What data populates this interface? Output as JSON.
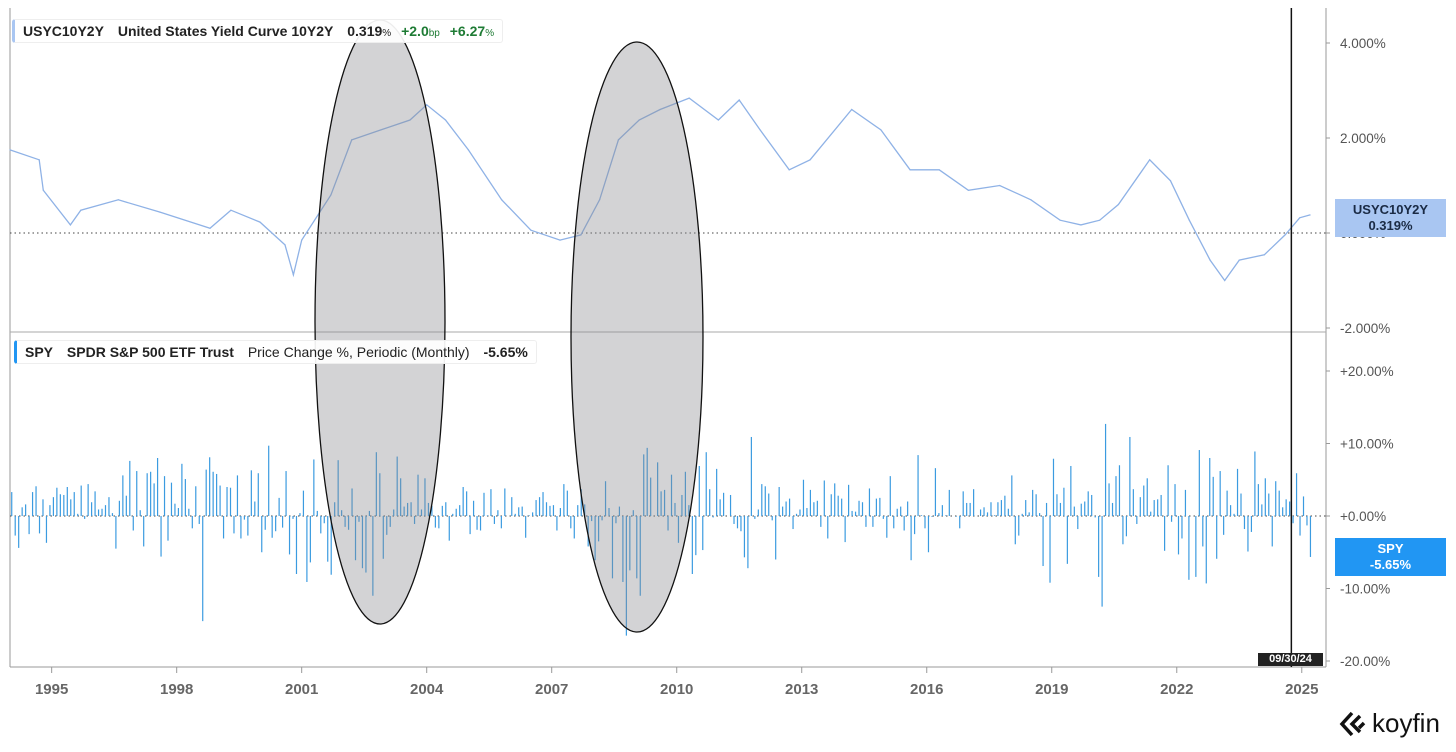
{
  "colors": {
    "yield_line": "#8fb2e6",
    "spy_bars": "#3b9be0",
    "yield_badge": "#a9c6f2",
    "spy_badge": "#2196f3",
    "positive": "#1e7b34"
  },
  "upper_legend": {
    "symbol": "USYC10Y2Y",
    "name": "United States Yield Curve 10Y2Y",
    "value": "0.319",
    "value_unit": "%",
    "change": "+2.0",
    "change_unit": "bp",
    "pct_change": "+6.27",
    "pct_unit": "%"
  },
  "lower_legend": {
    "symbol": "SPY",
    "name": "SPDR S&P 500 ETF Trust",
    "metric": "Price Change %, Periodic (Monthly)",
    "value": "-5.65%"
  },
  "yield_badge": {
    "symbol": "USYC10Y2Y",
    "value": "0.319%"
  },
  "spy_badge": {
    "symbol": "SPY",
    "value": "-5.65%"
  },
  "crosshair_date": "09/30/24",
  "logo": {
    "text": "koyfin"
  },
  "chart_data": [
    {
      "type": "line",
      "title": "United States Yield Curve 10Y2Y",
      "ylabel": "%",
      "xlim": [
        1994.0,
        2025.6
      ],
      "ylim": [
        -2.1,
        4.7
      ],
      "y_ticks": [
        4,
        2,
        0,
        -2
      ],
      "y_tick_labels": [
        "4.000%",
        "2.000%",
        "0.000%",
        "-2.000%"
      ],
      "reference_line": 0,
      "x": [
        1994.0,
        1994.7,
        1994.8,
        1995.45,
        1995.7,
        1996.6,
        1997.6,
        1998.8,
        1999.3,
        2000.0,
        2000.6,
        2000.8,
        2001.0,
        2001.7,
        2002.2,
        2002.9,
        2003.6,
        2004.0,
        2004.45,
        2005.0,
        2005.8,
        2006.5,
        2007.2,
        2007.7,
        2008.15,
        2008.6,
        2009.1,
        2009.6,
        2010.3,
        2011.0,
        2011.5,
        2012.0,
        2012.7,
        2013.2,
        2014.2,
        2014.9,
        2015.6,
        2016.3,
        2017.0,
        2017.75,
        2018.5,
        2019.2,
        2019.7,
        2020.15,
        2020.6,
        2021.35,
        2021.85,
        2022.3,
        2022.8,
        2023.15,
        2023.5,
        2024.1,
        2024.6,
        2024.95,
        2025.2
      ],
      "y": [
        1.75,
        1.54,
        0.9,
        0.17,
        0.48,
        0.7,
        0.44,
        0.1,
        0.48,
        0.23,
        -0.25,
        -0.88,
        -0.15,
        0.8,
        1.96,
        2.17,
        2.38,
        2.7,
        2.38,
        1.75,
        0.7,
        0.06,
        -0.15,
        -0.04,
        0.7,
        1.96,
        2.38,
        2.6,
        2.84,
        2.38,
        2.8,
        2.17,
        1.33,
        1.54,
        2.6,
        2.17,
        1.33,
        1.33,
        0.9,
        1.0,
        0.7,
        0.27,
        0.17,
        0.27,
        0.6,
        1.54,
        1.1,
        0.27,
        -0.57,
        -1.0,
        -0.57,
        -0.46,
        -0.04,
        0.32,
        0.38
      ]
    },
    {
      "type": "bar",
      "title": "SPY Price Change %, Periodic (Monthly)",
      "start": "1994-01",
      "ylim": [
        -21,
        21
      ],
      "y_ticks": [
        20,
        10,
        0,
        -10,
        -20
      ],
      "y_tick_labels": [
        "+20.00%",
        "+10.00%",
        "+0.00%",
        "-10.00%",
        "-20.00%"
      ],
      "values": [
        3.3,
        -2.7,
        -4.4,
        1.2,
        1.6,
        -2.5,
        3.3,
        4.1,
        -2.4,
        2.3,
        -3.7,
        1.5,
        2.6,
        3.9,
        3.0,
        2.9,
        4.0,
        2.3,
        3.3,
        0.3,
        4.2,
        -0.4,
        4.4,
        1.9,
        3.4,
        0.9,
        1.0,
        1.5,
        2.6,
        0.4,
        -4.5,
        2.1,
        5.6,
        2.8,
        7.6,
        -2.0,
        6.2,
        0.8,
        -4.2,
        5.9,
        6.1,
        4.5,
        8.0,
        -5.6,
        5.5,
        -3.4,
        4.6,
        1.7,
        1.1,
        7.2,
        5.1,
        1.0,
        -1.7,
        4.1,
        -1.1,
        -14.5,
        6.4,
        8.1,
        6.1,
        5.8,
        4.2,
        -3.1,
        4.0,
        3.9,
        -2.4,
        5.6,
        -3.1,
        -0.5,
        -2.7,
        6.3,
        2.0,
        5.9,
        -5.0,
        -1.9,
        9.7,
        -3.0,
        -2.1,
        2.5,
        -1.6,
        6.2,
        -5.3,
        -0.4,
        -8.0,
        0.4,
        3.5,
        -9.1,
        -6.4,
        7.8,
        0.7,
        -2.4,
        -1.0,
        -6.3,
        -8.1,
        1.9,
        7.7,
        0.8,
        -1.5,
        -1.9,
        3.8,
        -6.1,
        -0.8,
        -7.2,
        -7.8,
        0.7,
        -11.0,
        8.8,
        5.9,
        -5.9,
        -2.6,
        -1.5,
        0.9,
        8.2,
        5.2,
        1.3,
        1.8,
        1.9,
        -1.1,
        5.7,
        0.9,
        5.2,
        1.8,
        1.4,
        -1.6,
        -1.7,
        1.4,
        1.9,
        -3.4,
        0.3,
        1.0,
        1.5,
        4.0,
        3.4,
        -2.5,
        2.1,
        -1.9,
        -2.0,
        3.2,
        0.1,
        3.7,
        -1.1,
        0.8,
        -1.7,
        3.8,
        0.0,
        2.6,
        0.3,
        1.2,
        1.3,
        -3.0,
        0.1,
        0.5,
        2.2,
        2.6,
        3.3,
        1.9,
        1.4,
        1.5,
        -2.0,
        1.1,
        4.4,
        3.5,
        -1.7,
        -3.1,
        1.5,
        3.7,
        1.6,
        -4.2,
        -0.7,
        -6.1,
        -3.5,
        -0.6,
        4.8,
        1.1,
        -8.6,
        -1.0,
        1.3,
        -9.1,
        -16.5,
        -7.5,
        0.8,
        -8.6,
        -11.0,
        8.5,
        9.4,
        5.3,
        0.0,
        7.4,
        3.4,
        3.6,
        -2.0,
        5.7,
        1.8,
        -3.7,
        2.9,
        6.1,
        1.5,
        -8.0,
        -5.4,
        6.9,
        -4.7,
        8.8,
        3.7,
        -0.2,
        6.5,
        2.3,
        3.2,
        0.0,
        2.9,
        -1.1,
        -1.7,
        -2.1,
        -5.7,
        -7.2,
        10.9,
        -0.4,
        0.9,
        4.4,
        4.1,
        3.1,
        -0.6,
        -6.0,
        4.0,
        1.3,
        2.0,
        2.4,
        -1.8,
        0.3,
        0.9,
        5.0,
        1.1,
        3.6,
        1.9,
        2.1,
        -1.5,
        4.9,
        -3.1,
        3.0,
        4.5,
        2.8,
        2.4,
        -3.6,
        4.3,
        0.7,
        0.6,
        2.1,
        1.9,
        -1.5,
        3.8,
        -1.5,
        2.4,
        2.5,
        -0.4,
        -3.0,
        5.5,
        -1.7,
        1.0,
        1.3,
        -2.0,
        2.0,
        -6.1,
        -2.5,
        8.4,
        0.1,
        -1.7,
        -5.0,
        -0.1,
        6.6,
        0.4,
        1.5,
        0.1,
        3.6,
        0.0,
        -0.1,
        -1.7,
        3.4,
        1.8,
        1.8,
        3.7,
        0.0,
        0.9,
        1.2,
        0.5,
        1.9,
        0.1,
        1.9,
        2.2,
        2.8,
        1.0,
        5.6,
        -3.9,
        -2.7,
        0.3,
        2.2,
        0.5,
        3.6,
        3.0,
        0.4,
        -6.9,
        1.8,
        -9.2,
        7.9,
        3.0,
        1.8,
        3.9,
        -6.6,
        6.9,
        1.3,
        -1.8,
        1.7,
        2.0,
        3.4,
        2.9,
        -0.2,
        -8.4,
        -12.5,
        12.7,
        4.5,
        1.8,
        5.5,
        7.0,
        -3.9,
        -2.8,
        10.9,
        3.7,
        -1.1,
        2.6,
        4.2,
        5.2,
        0.6,
        2.2,
        2.3,
        2.9,
        -4.8,
        7.0,
        -0.8,
        4.4,
        -5.3,
        -3.1,
        3.6,
        -8.8,
        0.0,
        -8.4,
        9.1,
        -4.2,
        -9.3,
        8.0,
        5.4,
        -5.9,
        6.2,
        -2.6,
        3.5,
        1.5,
        0.3,
        6.5,
        3.1,
        -1.8,
        -4.9,
        -2.2,
        8.9,
        4.4,
        1.6,
        5.2,
        3.1,
        -4.2,
        4.8,
        3.5,
        1.2,
        2.3,
        2.0,
        -1.0,
        5.9,
        -2.7,
        2.7,
        -1.3,
        -5.65
      ]
    }
  ],
  "x_axis": {
    "ticks": [
      1995,
      1998,
      2001,
      2004,
      2007,
      2010,
      2013,
      2016,
      2019,
      2022,
      2025
    ],
    "labels": [
      "1995",
      "1998",
      "2001",
      "2004",
      "2007",
      "2010",
      "2013",
      "2016",
      "2019",
      "2022",
      "2025"
    ]
  },
  "annotations": [
    {
      "type": "ellipse",
      "span": [
        2001.6,
        2004.7
      ]
    },
    {
      "type": "ellipse",
      "span": [
        2007.8,
        2010.9
      ]
    }
  ],
  "crosshair_x": 2024.75
}
